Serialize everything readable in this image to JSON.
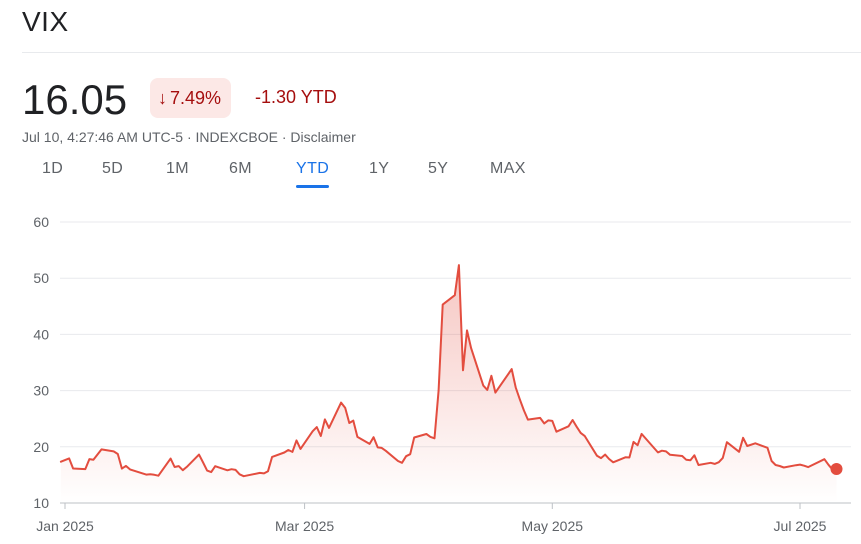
{
  "header": {
    "title": "VIX"
  },
  "quote": {
    "price": "16.05",
    "change_percent": "7.49%",
    "ytd_change": "-1.30 YTD",
    "meta": "Jul 10, 4:27:46 AM UTC-5 · INDEXCBOE · Disclaimer"
  },
  "range_tabs": {
    "items": [
      "1D",
      "5D",
      "1M",
      "6M",
      "YTD",
      "1Y",
      "5Y",
      "MAX"
    ],
    "selected": "YTD"
  },
  "colors": {
    "negative": "#a50e0e",
    "line": "#e34d3f",
    "accent": "#1a73e8"
  },
  "chart_data": {
    "type": "area",
    "title": "",
    "xlabel": "",
    "ylabel": "",
    "ylim": [
      10,
      60
    ],
    "yticks": [
      10,
      20,
      30,
      40,
      50,
      60
    ],
    "xticks": [
      "Jan 2025",
      "Mar 2025",
      "May 2025",
      "Jul 2025"
    ],
    "xtick_dates": [
      "2025-01-01",
      "2025-03-01",
      "2025-05-01",
      "2025-07-01"
    ],
    "grid": "horizontal",
    "series": [
      {
        "points": [
          [
            "2024-12-31",
            17.35
          ],
          [
            "2025-01-02",
            17.93
          ],
          [
            "2025-01-03",
            16.13
          ],
          [
            "2025-01-06",
            16.04
          ],
          [
            "2025-01-07",
            17.82
          ],
          [
            "2025-01-08",
            17.7
          ],
          [
            "2025-01-10",
            19.54
          ],
          [
            "2025-01-13",
            19.19
          ],
          [
            "2025-01-14",
            18.71
          ],
          [
            "2025-01-15",
            16.12
          ],
          [
            "2025-01-16",
            16.6
          ],
          [
            "2025-01-17",
            15.97
          ],
          [
            "2025-01-21",
            15.06
          ],
          [
            "2025-01-22",
            15.1
          ],
          [
            "2025-01-23",
            15.02
          ],
          [
            "2025-01-24",
            14.85
          ],
          [
            "2025-01-27",
            17.9
          ],
          [
            "2025-01-28",
            16.41
          ],
          [
            "2025-01-29",
            16.56
          ],
          [
            "2025-01-30",
            15.84
          ],
          [
            "2025-01-31",
            16.43
          ],
          [
            "2025-02-03",
            18.62
          ],
          [
            "2025-02-04",
            17.21
          ],
          [
            "2025-02-05",
            15.77
          ],
          [
            "2025-02-06",
            15.5
          ],
          [
            "2025-02-07",
            16.54
          ],
          [
            "2025-02-10",
            15.81
          ],
          [
            "2025-02-11",
            16.02
          ],
          [
            "2025-02-12",
            15.89
          ],
          [
            "2025-02-13",
            15.1
          ],
          [
            "2025-02-14",
            14.77
          ],
          [
            "2025-02-18",
            15.35
          ],
          [
            "2025-02-19",
            15.27
          ],
          [
            "2025-02-20",
            15.66
          ],
          [
            "2025-02-21",
            18.21
          ],
          [
            "2025-02-24",
            18.98
          ],
          [
            "2025-02-25",
            19.43
          ],
          [
            "2025-02-26",
            19.1
          ],
          [
            "2025-02-27",
            21.13
          ],
          [
            "2025-02-28",
            19.63
          ],
          [
            "2025-03-03",
            22.78
          ],
          [
            "2025-03-04",
            23.51
          ],
          [
            "2025-03-05",
            21.93
          ],
          [
            "2025-03-06",
            24.87
          ],
          [
            "2025-03-07",
            23.37
          ],
          [
            "2025-03-10",
            27.86
          ],
          [
            "2025-03-11",
            26.92
          ],
          [
            "2025-03-12",
            24.23
          ],
          [
            "2025-03-13",
            24.66
          ],
          [
            "2025-03-14",
            21.77
          ],
          [
            "2025-03-17",
            20.51
          ],
          [
            "2025-03-18",
            21.7
          ],
          [
            "2025-03-19",
            19.9
          ],
          [
            "2025-03-20",
            19.8
          ],
          [
            "2025-03-21",
            19.28
          ],
          [
            "2025-03-24",
            17.48
          ],
          [
            "2025-03-25",
            17.15
          ],
          [
            "2025-03-26",
            18.33
          ],
          [
            "2025-03-27",
            18.69
          ],
          [
            "2025-03-28",
            21.65
          ],
          [
            "2025-03-31",
            22.28
          ],
          [
            "2025-04-01",
            21.77
          ],
          [
            "2025-04-02",
            21.51
          ],
          [
            "2025-04-03",
            30.02
          ],
          [
            "2025-04-04",
            45.31
          ],
          [
            "2025-04-07",
            46.98
          ],
          [
            "2025-04-08",
            52.33
          ],
          [
            "2025-04-09",
            33.62
          ],
          [
            "2025-04-10",
            40.72
          ],
          [
            "2025-04-11",
            37.56
          ],
          [
            "2025-04-14",
            30.89
          ],
          [
            "2025-04-15",
            30.12
          ],
          [
            "2025-04-16",
            32.64
          ],
          [
            "2025-04-17",
            29.65
          ],
          [
            "2025-04-21",
            33.82
          ],
          [
            "2025-04-22",
            30.57
          ],
          [
            "2025-04-23",
            28.45
          ],
          [
            "2025-04-24",
            26.47
          ],
          [
            "2025-04-25",
            24.84
          ],
          [
            "2025-04-28",
            25.15
          ],
          [
            "2025-04-29",
            24.17
          ],
          [
            "2025-04-30",
            24.7
          ],
          [
            "2025-05-01",
            24.6
          ],
          [
            "2025-05-02",
            22.68
          ],
          [
            "2025-05-05",
            23.64
          ],
          [
            "2025-05-06",
            24.76
          ],
          [
            "2025-05-07",
            23.55
          ],
          [
            "2025-05-08",
            22.48
          ],
          [
            "2025-05-09",
            21.9
          ],
          [
            "2025-05-12",
            18.39
          ],
          [
            "2025-05-13",
            17.99
          ],
          [
            "2025-05-14",
            18.62
          ],
          [
            "2025-05-15",
            17.83
          ],
          [
            "2025-05-16",
            17.24
          ],
          [
            "2025-05-19",
            18.14
          ],
          [
            "2025-05-20",
            18.09
          ],
          [
            "2025-05-21",
            20.87
          ],
          [
            "2025-05-22",
            20.28
          ],
          [
            "2025-05-23",
            22.29
          ],
          [
            "2025-05-27",
            19.0
          ],
          [
            "2025-05-28",
            19.31
          ],
          [
            "2025-05-29",
            19.18
          ],
          [
            "2025-05-30",
            18.57
          ],
          [
            "2025-06-02",
            18.36
          ],
          [
            "2025-06-03",
            17.69
          ],
          [
            "2025-06-04",
            17.61
          ],
          [
            "2025-06-05",
            18.48
          ],
          [
            "2025-06-06",
            16.77
          ],
          [
            "2025-06-09",
            17.16
          ],
          [
            "2025-06-10",
            16.95
          ],
          [
            "2025-06-11",
            17.26
          ],
          [
            "2025-06-12",
            18.02
          ],
          [
            "2025-06-13",
            20.82
          ],
          [
            "2025-06-16",
            19.11
          ],
          [
            "2025-06-17",
            21.6
          ],
          [
            "2025-06-18",
            20.14
          ],
          [
            "2025-06-20",
            20.62
          ],
          [
            "2025-06-23",
            19.83
          ],
          [
            "2025-06-24",
            17.48
          ],
          [
            "2025-06-25",
            16.76
          ],
          [
            "2025-06-26",
            16.59
          ],
          [
            "2025-06-27",
            16.32
          ],
          [
            "2025-06-30",
            16.73
          ],
          [
            "2025-07-01",
            16.83
          ],
          [
            "2025-07-02",
            16.64
          ],
          [
            "2025-07-03",
            16.38
          ],
          [
            "2025-07-07",
            17.79
          ],
          [
            "2025-07-08",
            16.81
          ],
          [
            "2025-07-09",
            15.94
          ],
          [
            "2025-07-10",
            16.05
          ]
        ]
      }
    ]
  }
}
